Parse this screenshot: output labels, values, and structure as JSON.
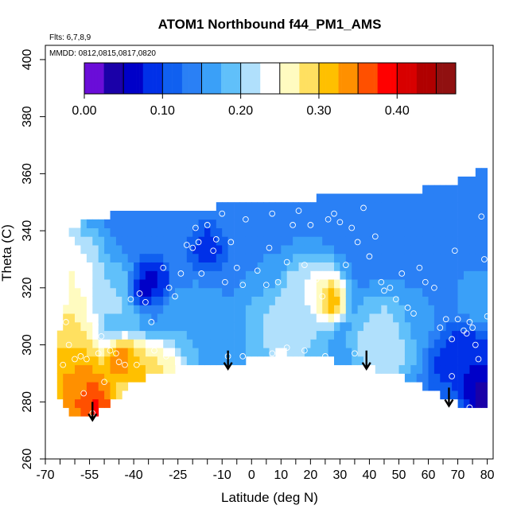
{
  "chart_data": {
    "type": "heatmap",
    "title": "ATOM1 Northbound f44_PM1_AMS",
    "annotations": {
      "flights": "Flts: 6,7,8,9",
      "dates": "MMDD: 0812,0815,0817,0820"
    },
    "xlabel": "Latitude (deg N)",
    "ylabel": "Theta (C)",
    "xlim": [
      -70,
      82
    ],
    "ylim": [
      260,
      405
    ],
    "xticks": [
      -70,
      -55,
      -40,
      -25,
      -10,
      0,
      10,
      20,
      30,
      40,
      50,
      60,
      70,
      80
    ],
    "yticks": [
      260,
      280,
      300,
      320,
      340,
      360,
      380,
      400
    ],
    "colorbar": {
      "range": [
        0.0,
        0.475
      ],
      "boundaries": [
        0.0,
        0.025,
        0.05,
        0.075,
        0.1,
        0.125,
        0.15,
        0.175,
        0.2,
        0.225,
        0.25,
        0.275,
        0.3,
        0.325,
        0.35,
        0.375,
        0.4,
        0.425,
        0.45,
        0.475
      ],
      "tick_values": [
        0.0,
        0.1,
        0.2,
        0.3,
        0.4
      ],
      "tick_labels": [
        "0.00",
        "0.10",
        "0.20",
        "0.30",
        "0.40"
      ],
      "major_dividers": [
        0.05,
        0.1,
        0.15,
        0.2,
        0.25,
        0.3,
        0.35,
        0.4,
        0.45
      ],
      "colors": [
        "#6a0dd8",
        "#1a00a8",
        "#0000c8",
        "#0030e8",
        "#1060f0",
        "#2a80f5",
        "#3aa0f8",
        "#60c0fa",
        "#b0e0fc",
        "#ffffff",
        "#fffbc0",
        "#ffe060",
        "#ffc000",
        "#ff9000",
        "#ff5000",
        "#ff0000",
        "#d80000",
        "#b00000",
        "#901010"
      ]
    },
    "domain_top": [
      [
        -63,
        340
      ],
      [
        -55,
        344
      ],
      [
        -45,
        346
      ],
      [
        -30,
        346
      ],
      [
        -15,
        348
      ],
      [
        0,
        350
      ],
      [
        15,
        351
      ],
      [
        30,
        352
      ],
      [
        45,
        353
      ],
      [
        55,
        354
      ],
      [
        70,
        357
      ],
      [
        77,
        361
      ],
      [
        80,
        362
      ]
    ],
    "domain_bottom": [
      [
        80,
        277
      ],
      [
        76,
        277
      ],
      [
        66,
        282
      ],
      [
        50,
        290
      ],
      [
        40,
        292
      ],
      [
        32,
        293
      ],
      [
        24,
        296
      ],
      [
        16,
        296
      ],
      [
        10,
        298
      ],
      [
        0,
        295
      ],
      [
        -10,
        293
      ],
      [
        -20,
        293
      ],
      [
        -32,
        290
      ],
      [
        -42,
        285
      ],
      [
        -52,
        276
      ],
      [
        -58,
        273
      ],
      [
        -62,
        276
      ],
      [
        -66,
        282
      ],
      [
        -66,
        300
      ],
      [
        -62,
        320
      ],
      [
        -60,
        335
      ],
      [
        -63,
        340
      ]
    ],
    "hotspots": [
      {
        "lat": -66,
        "theta": 290,
        "r": 9,
        "value": 0.34
      },
      {
        "lat": -56,
        "theta": 283,
        "r": 8,
        "value": 0.38
      },
      {
        "lat": -53,
        "theta": 277,
        "r": 5,
        "value": 0.42
      },
      {
        "lat": -63,
        "theta": 305,
        "r": 7,
        "value": 0.31
      },
      {
        "lat": -44,
        "theta": 294,
        "r": 4,
        "value": 0.4
      },
      {
        "lat": -42,
        "theta": 290,
        "r": 6,
        "value": 0.3
      },
      {
        "lat": -36,
        "theta": 289,
        "r": 6,
        "value": 0.33
      },
      {
        "lat": -28,
        "theta": 292,
        "r": 5,
        "value": 0.28
      },
      {
        "lat": -64,
        "theta": 322,
        "r": 10,
        "value": 0.27
      },
      {
        "lat": -38,
        "theta": 319,
        "r": 3,
        "value": 0.04
      },
      {
        "lat": -34,
        "theta": 323,
        "r": 4,
        "value": 0.06
      },
      {
        "lat": -45,
        "theta": 315,
        "r": 6,
        "value": 0.21
      },
      {
        "lat": -15,
        "theta": 334,
        "r": 4,
        "value": 0.08
      },
      {
        "lat": 26,
        "theta": 318,
        "r": 4,
        "value": 0.33
      },
      {
        "lat": 27,
        "theta": 315,
        "r": 3,
        "value": 0.37
      },
      {
        "lat": 20,
        "theta": 318,
        "r": 7,
        "value": 0.24
      },
      {
        "lat": 12,
        "theta": 305,
        "r": 10,
        "value": 0.22
      },
      {
        "lat": 45,
        "theta": 301,
        "r": 8,
        "value": 0.23
      },
      {
        "lat": -18,
        "theta": 303,
        "r": 8,
        "value": 0.18
      },
      {
        "lat": 78,
        "theta": 285,
        "r": 5,
        "value": 0.03
      },
      {
        "lat": 80,
        "theta": 278,
        "r": 3,
        "value": 0.0
      },
      {
        "lat": 74,
        "theta": 296,
        "r": 6,
        "value": 0.07
      },
      {
        "lat": 66,
        "theta": 293,
        "r": 5,
        "value": 0.09
      },
      {
        "lat": 78,
        "theta": 315,
        "r": 5,
        "value": 0.18
      },
      {
        "lat": 56,
        "theta": 308,
        "r": 5,
        "value": 0.16
      },
      {
        "lat": 3,
        "theta": 330,
        "r": 6,
        "value": 0.15
      },
      {
        "lat": 42,
        "theta": 336,
        "r": 6,
        "value": 0.15
      }
    ],
    "background_value": 0.14,
    "samples": [
      [
        -65,
        311
      ],
      [
        -63,
        308
      ],
      [
        -56,
        295
      ],
      [
        -53,
        307
      ],
      [
        -51,
        303
      ],
      [
        -48,
        298
      ],
      [
        -45,
        294
      ],
      [
        -43,
        293
      ],
      [
        -38,
        318
      ],
      [
        -36,
        315
      ],
      [
        -34,
        308
      ],
      [
        -41,
        316
      ],
      [
        -33,
        298
      ],
      [
        -30,
        327
      ],
      [
        -28,
        320
      ],
      [
        -26,
        317
      ],
      [
        -24,
        325
      ],
      [
        -22,
        335
      ],
      [
        -20,
        334
      ],
      [
        -19,
        341
      ],
      [
        -18,
        336
      ],
      [
        -17,
        325
      ],
      [
        -15,
        342
      ],
      [
        -13,
        333
      ],
      [
        -12,
        337
      ],
      [
        -10,
        346
      ],
      [
        -9,
        322
      ],
      [
        -7,
        336
      ],
      [
        -5,
        327
      ],
      [
        -3,
        321
      ],
      [
        -2,
        344
      ],
      [
        2,
        326
      ],
      [
        5,
        321
      ],
      [
        6,
        334
      ],
      [
        7,
        346
      ],
      [
        9,
        322
      ],
      [
        12,
        329
      ],
      [
        14,
        342
      ],
      [
        16,
        347
      ],
      [
        18,
        328
      ],
      [
        20,
        342
      ],
      [
        22,
        323
      ],
      [
        24,
        317
      ],
      [
        26,
        344
      ],
      [
        28,
        346
      ],
      [
        30,
        343
      ],
      [
        32,
        328
      ],
      [
        34,
        341
      ],
      [
        36,
        336
      ],
      [
        38,
        348
      ],
      [
        40,
        331
      ],
      [
        42,
        338
      ],
      [
        44,
        322
      ],
      [
        45,
        319
      ],
      [
        47,
        320
      ],
      [
        49,
        316
      ],
      [
        51,
        325
      ],
      [
        53,
        313
      ],
      [
        55,
        311
      ],
      [
        57,
        327
      ],
      [
        59,
        322
      ],
      [
        62,
        320
      ],
      [
        64,
        306
      ],
      [
        66,
        309
      ],
      [
        68,
        302
      ],
      [
        69,
        333
      ],
      [
        70,
        309
      ],
      [
        72,
        305
      ],
      [
        73,
        304
      ],
      [
        74,
        308
      ],
      [
        75,
        306
      ],
      [
        76,
        300
      ],
      [
        77,
        295
      ],
      [
        78,
        345
      ],
      [
        79,
        330
      ],
      [
        80,
        310
      ],
      [
        -46,
        297
      ],
      [
        -60,
        295
      ],
      [
        -52,
        297
      ],
      [
        12,
        299
      ],
      [
        18,
        298
      ],
      [
        25,
        296
      ],
      [
        35,
        297
      ],
      [
        -8,
        296
      ],
      [
        -3,
        296
      ],
      [
        7,
        297
      ],
      [
        -58,
        296
      ],
      [
        -62,
        300
      ],
      [
        -64,
        293
      ],
      [
        -57,
        283
      ],
      [
        -54,
        276
      ],
      [
        -50,
        287
      ],
      [
        -39,
        293
      ],
      [
        -29,
        296
      ],
      [
        68,
        289
      ],
      [
        74,
        278
      ]
    ],
    "arrows": [
      [
        -54,
        280
      ],
      [
        -8,
        298
      ],
      [
        39,
        298
      ],
      [
        67,
        285
      ]
    ]
  }
}
